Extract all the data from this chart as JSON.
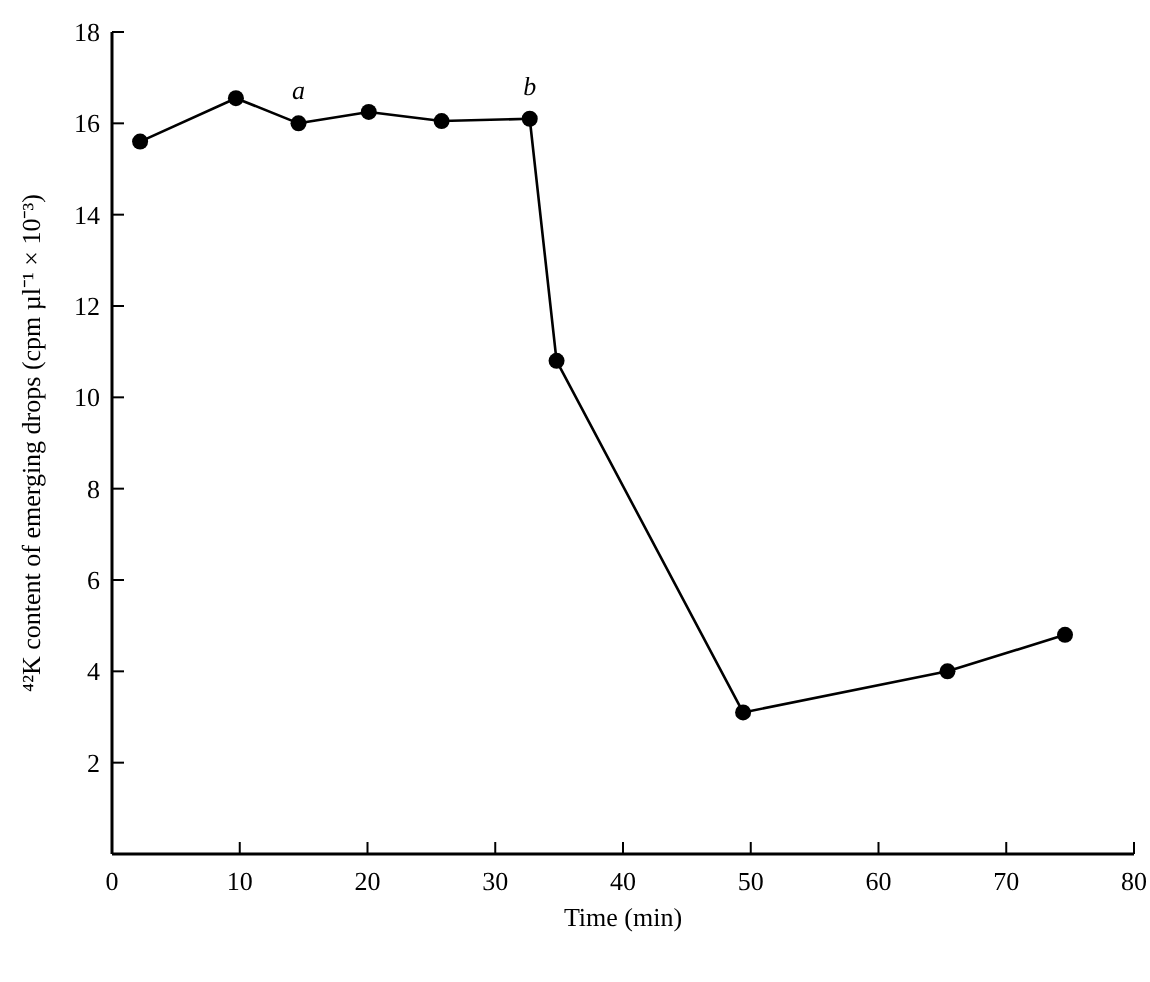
{
  "chart_data": {
    "type": "line",
    "xlabel": "Time (min)",
    "ylabel": "⁴²K content of emerging drops (cpm µl⁻¹ × 10⁻³)",
    "x": [
      2.2,
      9.7,
      14.6,
      20.1,
      25.8,
      32.7,
      34.8,
      49.4,
      65.4,
      74.6
    ],
    "series": [
      {
        "color": "#000000",
        "values": [
          15.6,
          16.55,
          16.0,
          16.25,
          16.05,
          16.1,
          10.8,
          3.1,
          4.0,
          4.8
        ]
      }
    ],
    "xlim": [
      0,
      80
    ],
    "xticks": [
      0,
      10,
      20,
      30,
      40,
      50,
      60,
      70,
      80
    ],
    "ylim": [
      0,
      18
    ],
    "yticks": [
      2,
      4,
      6,
      8,
      10,
      12,
      14,
      16,
      18
    ],
    "marker": "circle",
    "line_style": "solid",
    "grid": false,
    "annotations": [
      {
        "text": "a",
        "x": 14.6,
        "y": 16.0
      },
      {
        "text": "b",
        "x": 32.7,
        "y": 16.1
      }
    ]
  }
}
